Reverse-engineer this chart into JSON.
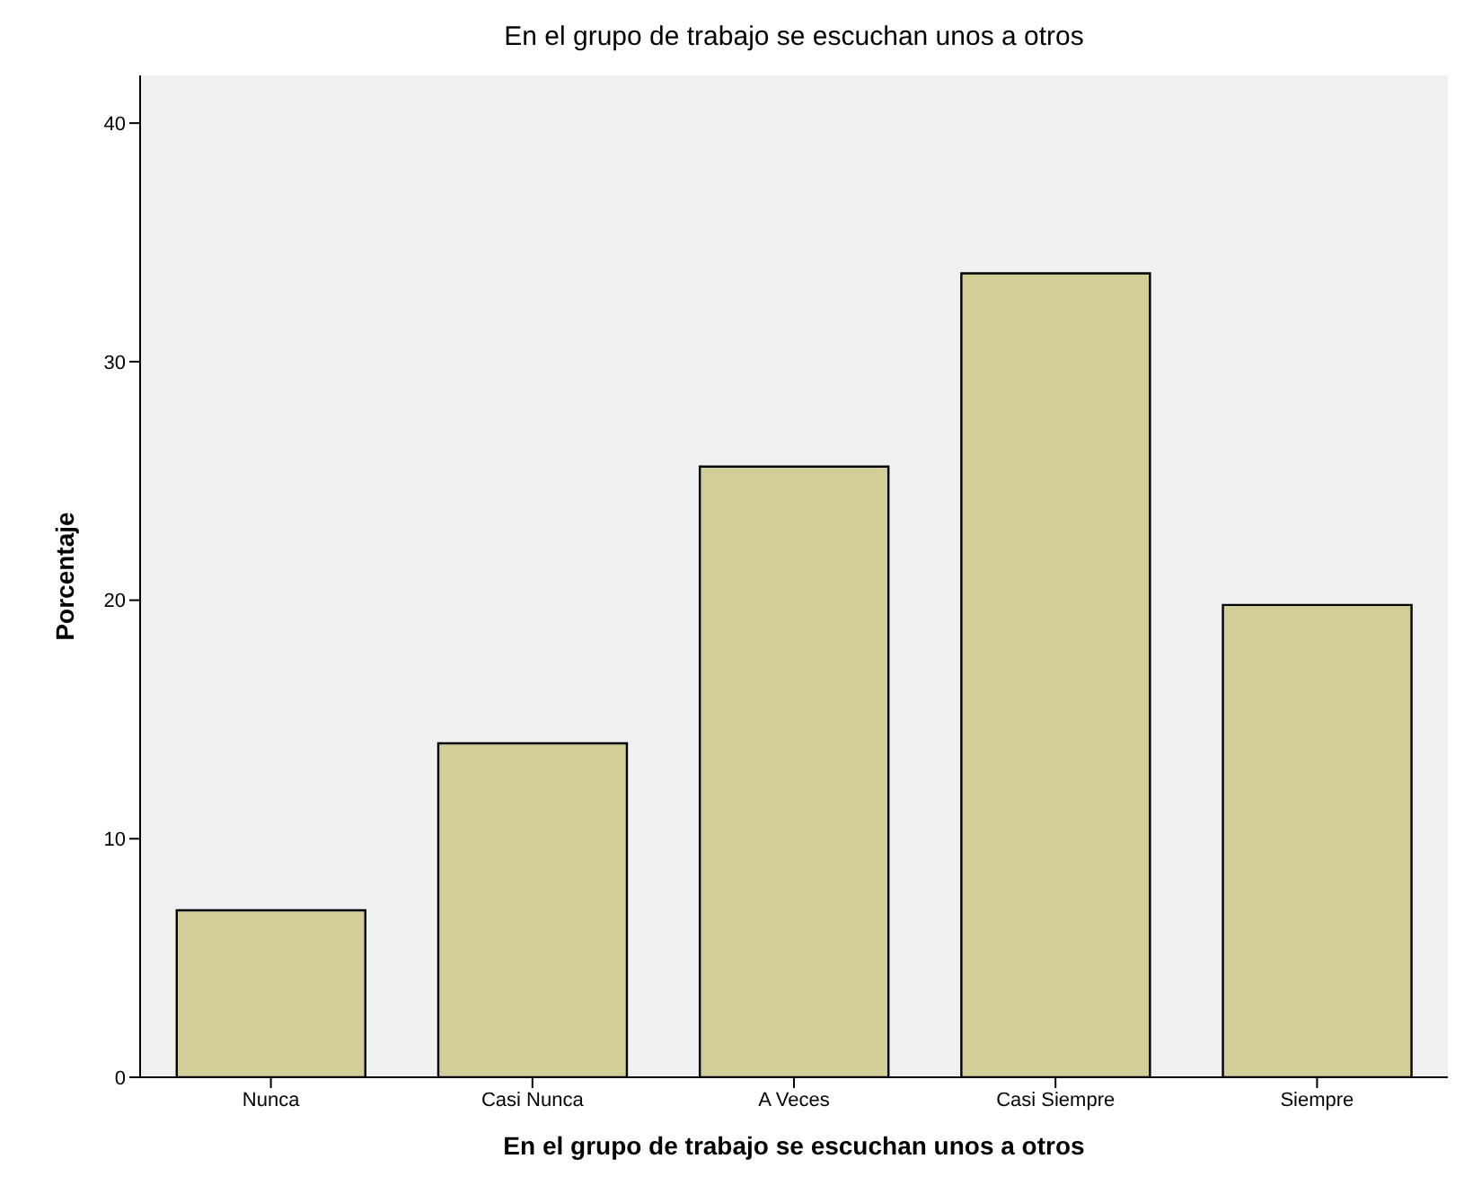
{
  "chart_data": {
    "type": "bar",
    "title": "En el grupo de trabajo se escuchan unos a otros",
    "xlabel": "En el grupo de trabajo se escuchan unos a otros",
    "ylabel": "Porcentaje",
    "categories": [
      "Nunca",
      "Casi Nunca",
      "A Veces",
      "Casi Siempre",
      "Siempre"
    ],
    "values": [
      7.0,
      14.0,
      25.6,
      33.7,
      19.8
    ],
    "color": "#d3ce97",
    "ylim": [
      0,
      42
    ],
    "yticks": [
      0,
      10,
      20,
      30,
      40
    ],
    "grid": false,
    "legend": false
  }
}
